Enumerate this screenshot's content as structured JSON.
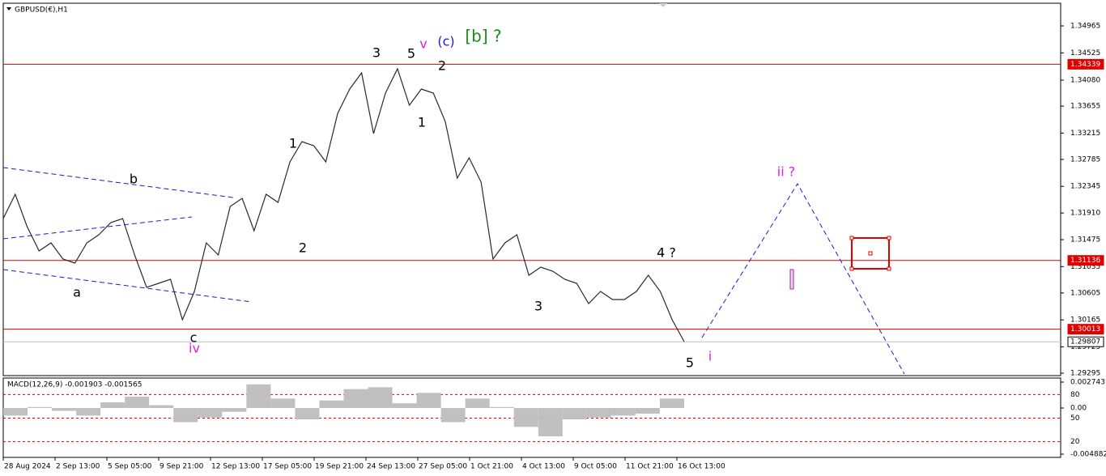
{
  "chart_data": {
    "type": "line",
    "title": "GBPUSD(€),H1",
    "x_labels": [
      "28 Aug 2024",
      "2 Sep 13:00",
      "5 Sep 05:00",
      "9 Sep 21:00",
      "12 Sep 13:00",
      "17 Sep 05:00",
      "19 Sep 21:00",
      "24 Sep 13:00",
      "27 Sep 05:00",
      "1 Oct 21:00",
      "4 Oct 13:00",
      "9 Oct 05:00",
      "11 Oct 21:00",
      "16 Oct 13:00"
    ],
    "ylim": [
      1.29255,
      1.35335
    ],
    "yticks": [
      1.34965,
      1.34525,
      {
        "value": 1.3408,
        "label": "1.34080"
      },
      1.33655,
      1.33215,
      1.32785,
      1.32345,
      {
        "value": 1.3191,
        "label": "1.31910"
      },
      1.31475,
      1.31035,
      1.30605,
      1.30165,
      1.29725,
      1.29295
    ],
    "series": [
      {
        "name": "GBPUSD",
        "color": "#2a2a2a",
        "values": [
          1.31819,
          1.32216,
          1.31687,
          1.31291,
          1.31423,
          1.31158,
          1.31092,
          1.31423,
          1.31555,
          1.31753,
          1.31819,
          1.31225,
          1.30696,
          1.30762,
          1.30828,
          1.30167,
          1.3063,
          1.31423,
          1.31225,
          1.32018,
          1.3215,
          1.31621,
          1.32216,
          1.32084,
          1.32745,
          1.33075,
          1.33009,
          1.32745,
          1.33538,
          1.33934,
          1.34198,
          1.33207,
          1.33868,
          1.34265,
          1.3367,
          1.33934,
          1.33868,
          1.33405,
          1.3248,
          1.32811,
          1.32414,
          1.31158,
          1.31423,
          1.31555,
          1.30894,
          1.31026,
          1.3096,
          1.30828,
          1.30762,
          1.30432,
          1.3063,
          1.30498,
          1.30498,
          1.3063,
          1.30894,
          1.3063,
          1.30167,
          1.2981
        ]
      }
    ],
    "levels": [
      {
        "value": 1.34339,
        "color": "#e00000"
      },
      {
        "value": 1.31136,
        "color": "#e00000"
      },
      {
        "value": 1.30013,
        "color": "#e00000"
      },
      {
        "value": 1.29807,
        "color": "#c0c0c0"
      }
    ],
    "annotations": [
      {
        "text": "3",
        "color": "#000000"
      },
      {
        "text": "5",
        "color": "#000000"
      },
      {
        "text": "v",
        "color": "#e020e0"
      },
      {
        "text": "(c)",
        "color": "#1a1ad0"
      },
      {
        "text": "[b] ?",
        "color": "#1a8a1a"
      },
      {
        "text": "2",
        "color": "#000000"
      },
      {
        "text": "1",
        "color": "#000000"
      },
      {
        "text": "1",
        "color": "#000000"
      },
      {
        "text": "2",
        "color": "#000000"
      },
      {
        "text": "b",
        "color": "#000000"
      },
      {
        "text": "a",
        "color": "#000000"
      },
      {
        "text": "c",
        "color": "#000000"
      },
      {
        "text": "iv",
        "color": "#e020e0"
      },
      {
        "text": "3",
        "color": "#000000"
      },
      {
        "text": "4 ?",
        "color": "#000000"
      },
      {
        "text": "5",
        "color": "#000000"
      },
      {
        "text": "i",
        "color": "#e020e0"
      },
      {
        "text": "ii ?",
        "color": "#e020e0"
      }
    ],
    "macd": {
      "label": "MACD(12,26,9) -0.001903 -0.001565",
      "ylim": [
        -0.004882,
        0.002743
      ],
      "yticks": [
        0.002743,
        {
          "value": 0,
          "label": "0.00"
        },
        -0.004882
      ],
      "color": "#c0c0c0",
      "values": [
        -0.0008,
        0.0001,
        -0.0003,
        -0.0008,
        0.0006,
        0.0012,
        0.0003,
        -0.0015,
        -0.001,
        -0.0004,
        0.0025,
        0.001,
        -0.0012,
        0.0008,
        0.002,
        0.0022,
        0.0005,
        0.0016,
        -0.0015,
        0.001,
        0.0001,
        -0.002,
        -0.003,
        -0.0012,
        -0.001,
        -0.0008,
        -0.0006,
        0.001
      ],
      "osc_ylim": [
        0,
        100
      ],
      "osc_levels": [
        80,
        50,
        20
      ]
    }
  }
}
